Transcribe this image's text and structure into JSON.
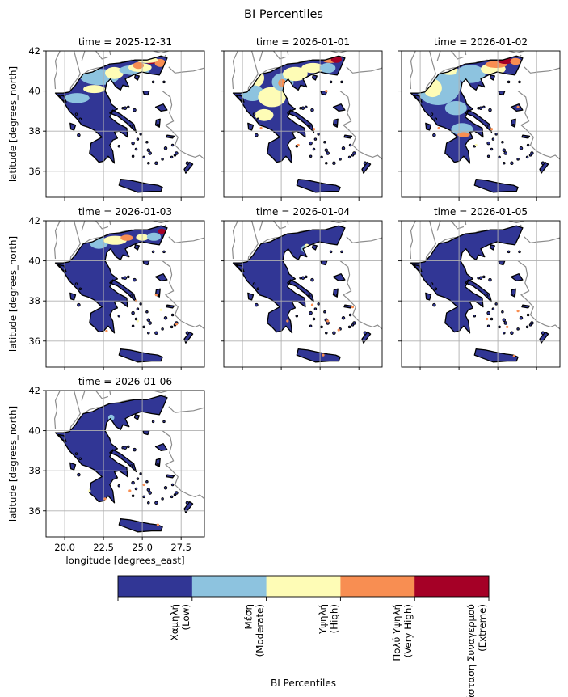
{
  "chart_data": {
    "type": "heatmap",
    "title": "BI Percentiles",
    "panels": [
      {
        "title": "time = 2025-12-31"
      },
      {
        "title": "time = 2026-01-01"
      },
      {
        "title": "time = 2026-01-02"
      },
      {
        "title": "time = 2026-01-03"
      },
      {
        "title": "time = 2026-01-04"
      },
      {
        "title": "time = 2026-01-05"
      },
      {
        "title": "time = 2026-01-06"
      }
    ],
    "xlabel": "longitude [degrees_east]",
    "ylabel": "latitude [degrees_north]",
    "xlim": [
      18.8,
      29.0
    ],
    "ylim": [
      34.7,
      42.0
    ],
    "xticks": [
      20.0,
      22.5,
      25.0,
      27.5
    ],
    "xtick_labels": [
      "20.0",
      "22.5",
      "25.0",
      "27.5"
    ],
    "yticks": [
      36,
      38,
      40,
      42
    ],
    "ytick_labels": [
      "36",
      "38",
      "40",
      "42"
    ],
    "grid": true,
    "category_fraction_by_panel": [
      [
        0.55,
        0.17,
        0.17,
        0.07,
        0.04
      ],
      [
        0.5,
        0.2,
        0.18,
        0.08,
        0.04
      ],
      [
        0.45,
        0.25,
        0.18,
        0.08,
        0.04
      ],
      [
        0.88,
        0.05,
        0.05,
        0.02,
        0.0
      ],
      [
        0.95,
        0.03,
        0.01,
        0.01,
        0.0
      ],
      [
        0.98,
        0.01,
        0.01,
        0.0,
        0.0
      ],
      [
        0.96,
        0.02,
        0.01,
        0.01,
        0.0
      ]
    ],
    "colorbar": {
      "label": "BI Percentiles",
      "categories": [
        {
          "line1": "Χαμηλή",
          "line2": "(Low)",
          "color": "#313695"
        },
        {
          "line1": "Μέση",
          "line2": "(Moderate)",
          "color": "#8dc3df"
        },
        {
          "line1": "Υψηλή",
          "line2": "(High)",
          "color": "#fefcb6"
        },
        {
          "line1": "Πολύ Υψηλή",
          "line2": "(Very High)",
          "color": "#f88e52"
        },
        {
          "line1": "Κατάσταση Συναγερμού",
          "line2": "(Extreme)",
          "color": "#a50026"
        }
      ]
    }
  },
  "colors": {
    "background": "#ffffff",
    "grid": "#b0b0b0",
    "border_outline": "#8c8c8c",
    "coast": "#000000"
  }
}
